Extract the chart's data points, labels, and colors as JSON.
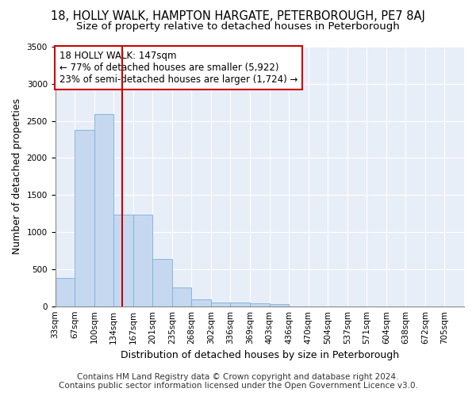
{
  "title": "18, HOLLY WALK, HAMPTON HARGATE, PETERBOROUGH, PE7 8AJ",
  "subtitle": "Size of property relative to detached houses in Peterborough",
  "xlabel": "Distribution of detached houses by size in Peterborough",
  "ylabel": "Number of detached properties",
  "footer_line1": "Contains HM Land Registry data © Crown copyright and database right 2024.",
  "footer_line2": "Contains public sector information licensed under the Open Government Licence v3.0.",
  "annotation_line1": "18 HOLLY WALK: 147sqm",
  "annotation_line2": "← 77% of detached houses are smaller (5,922)",
  "annotation_line3": "23% of semi-detached houses are larger (1,724) →",
  "categories": [
    "33sqm",
    "67sqm",
    "100sqm",
    "134sqm",
    "167sqm",
    "201sqm",
    "235sqm",
    "268sqm",
    "302sqm",
    "336sqm",
    "369sqm",
    "403sqm",
    "436sqm",
    "470sqm",
    "504sqm",
    "537sqm",
    "571sqm",
    "604sqm",
    "638sqm",
    "672sqm",
    "705sqm"
  ],
  "values": [
    380,
    2380,
    2590,
    1240,
    1240,
    640,
    255,
    90,
    55,
    55,
    35,
    30,
    0,
    0,
    0,
    0,
    0,
    0,
    0,
    0,
    0
  ],
  "bar_color": "#c5d8f0",
  "bar_edge_color": "#7bafd4",
  "vline_index": 3.43,
  "vline_color": "#cc0000",
  "annotation_box_color": "#cc0000",
  "background_color": "#e8eef8",
  "ylim": [
    0,
    3500
  ],
  "yticks": [
    0,
    500,
    1000,
    1500,
    2000,
    2500,
    3000,
    3500
  ],
  "title_fontsize": 10.5,
  "subtitle_fontsize": 9.5,
  "axis_label_fontsize": 9,
  "tick_fontsize": 7.5,
  "annotation_fontsize": 8.5,
  "footer_fontsize": 7.5
}
